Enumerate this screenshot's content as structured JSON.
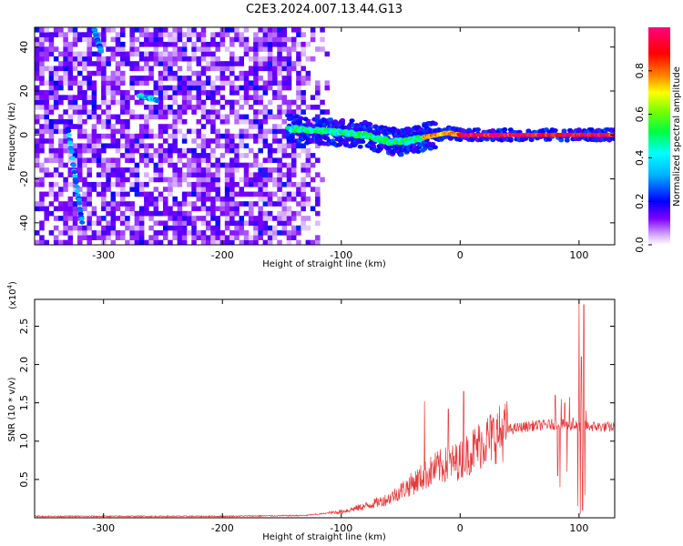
{
  "title": "C2E3.2024.007.13.44.G13",
  "chart_data": [
    {
      "type": "heatmap",
      "xlabel": "Height of straight line (km)",
      "ylabel": "Frequency (Hz)",
      "xlim": [
        -358,
        130
      ],
      "ylim": [
        -50,
        49
      ],
      "x_ticks": [
        -300,
        -200,
        -100,
        0,
        100
      ],
      "x_tick_labels": [
        "-300",
        "-200",
        "-100",
        "0",
        "100"
      ],
      "y_ticks": [
        -40,
        -20,
        0,
        20,
        40
      ],
      "y_tick_labels": [
        "-40",
        "-20",
        "0",
        "20",
        "40"
      ],
      "colorbar": {
        "label": "Normalized spectral amplitude",
        "range": [
          0,
          1
        ],
        "ticks": [
          0,
          0.2,
          0.4,
          0.6,
          0.8
        ],
        "tick_labels": [
          "0.0",
          "0.2",
          "0.4",
          "0.6",
          "0.8"
        ],
        "colormap": [
          "#ffffff",
          "#7f00ff",
          "#0000ff",
          "#00ffff",
          "#00ff00",
          "#ffff00",
          "#ff8000",
          "#ff0000",
          "#ff0080"
        ]
      },
      "features": {
        "noise_region_x": [
          -358,
          -120
        ],
        "signal_ridge": [
          [
            -145,
            3
          ],
          [
            -120,
            2
          ],
          [
            -100,
            1
          ],
          [
            -80,
            0
          ],
          [
            -60,
            -3
          ],
          [
            -45,
            -3
          ],
          [
            -30,
            -1
          ],
          [
            -10,
            1
          ],
          [
            0,
            0
          ],
          [
            50,
            0
          ],
          [
            100,
            0
          ],
          [
            130,
            0
          ]
        ],
        "steep_streak_1": [
          [
            -330,
            3
          ],
          [
            -318,
            -40
          ]
        ],
        "steep_streak_2": [
          [
            -308,
            48
          ],
          [
            -302,
            38
          ]
        ],
        "blob": [
          [
            -270,
            18
          ],
          [
            -255,
            16
          ]
        ]
      }
    },
    {
      "type": "line",
      "xlabel": "Height of straight line (km)",
      "ylabel": "SNR (10 * v/v)",
      "y_multiplier_label": "(x10",
      "y_multiplier_exp": "4",
      "xlim": [
        -358,
        130
      ],
      "ylim": [
        0,
        2.85
      ],
      "x_ticks": [
        -300,
        -200,
        -100,
        0,
        100
      ],
      "x_tick_labels": [
        "-300",
        "-200",
        "-100",
        "0",
        "100"
      ],
      "y_ticks": [
        0.5,
        1.0,
        1.5,
        2.0,
        2.5
      ],
      "y_tick_labels": [
        "0.5",
        "1.0",
        "1.5",
        "2.0",
        "2.5"
      ],
      "line_color": "#e83a3a",
      "envelope": [
        [
          -358,
          0.02
        ],
        [
          -200,
          0.02
        ],
        [
          -130,
          0.03
        ],
        [
          -100,
          0.08
        ],
        [
          -80,
          0.15
        ],
        [
          -60,
          0.25
        ],
        [
          -40,
          0.45
        ],
        [
          -20,
          0.65
        ],
        [
          0,
          0.75
        ],
        [
          20,
          1.0
        ],
        [
          40,
          1.15
        ],
        [
          60,
          1.2
        ],
        [
          80,
          1.22
        ],
        [
          100,
          1.2
        ],
        [
          130,
          1.18
        ]
      ],
      "spikes": [
        [
          -30,
          1.52
        ],
        [
          -10,
          1.42
        ],
        [
          3,
          1.65
        ],
        [
          80,
          1.6
        ],
        [
          82,
          1.72
        ],
        [
          85,
          1.55
        ],
        [
          88,
          1.5
        ],
        [
          92,
          1.58
        ],
        [
          95,
          1.3
        ],
        [
          100,
          2.85
        ],
        [
          102,
          2.1
        ],
        [
          104,
          2.78
        ],
        [
          106,
          1.4
        ]
      ],
      "dips": [
        [
          82,
          0.55
        ],
        [
          84,
          0.4
        ],
        [
          90,
          0.6
        ],
        [
          99,
          0.15
        ],
        [
          101,
          0.05
        ],
        [
          103,
          0.1
        ],
        [
          105,
          0.3
        ]
      ]
    }
  ]
}
